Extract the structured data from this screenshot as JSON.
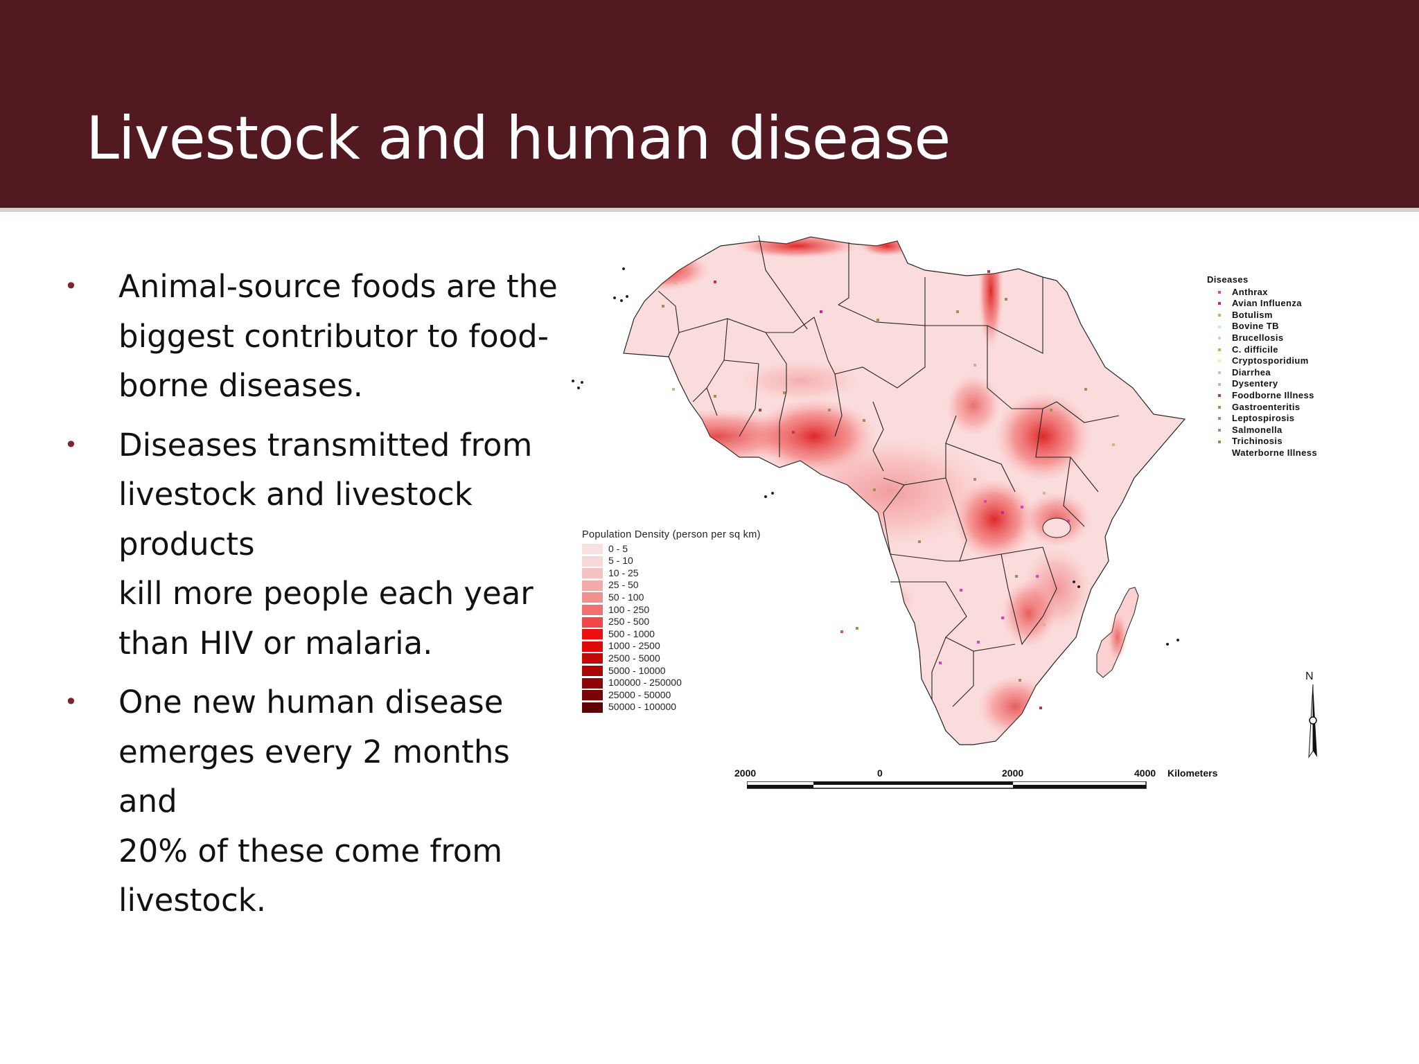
{
  "slide": {
    "title": "Livestock and human disease",
    "bullets": [
      "Animal-source foods are the\nbiggest contributor to food-\nborne diseases.",
      "Diseases transmitted from\nlivestock and livestock\nproducts\nkill more people each year\nthan HIV or malaria.",
      "One new human disease\nemerges every 2 months and\n20% of these come from\nlivestock."
    ],
    "bullet_symbol": "•"
  },
  "map": {
    "region": "Africa",
    "population_legend": {
      "title": "Population Density (person per sq km)",
      "classes": [
        {
          "label": "0 - 5",
          "color": "#f9e1e1"
        },
        {
          "label": "5 - 10",
          "color": "#f7d7d7"
        },
        {
          "label": "10 - 25",
          "color": "#f5c2c2"
        },
        {
          "label": "25 - 50",
          "color": "#f3aaaa"
        },
        {
          "label": "50 - 100",
          "color": "#f28f8f"
        },
        {
          "label": "100 - 250",
          "color": "#f17070"
        },
        {
          "label": "250 - 500",
          "color": "#f04848"
        },
        {
          "label": "500 - 1000",
          "color": "#ee1010"
        },
        {
          "label": "1000 - 2500",
          "color": "#dd0a0a"
        },
        {
          "label": "2500 - 5000",
          "color": "#c50808"
        },
        {
          "label": "5000 - 10000",
          "color": "#ab0606"
        },
        {
          "label": "100000 - 250000",
          "color": "#8f0505"
        },
        {
          "label": "25000 - 50000",
          "color": "#790404"
        },
        {
          "label": "50000 - 100000",
          "color": "#5e0303"
        }
      ]
    },
    "disease_legend": {
      "title": "Diseases",
      "items": [
        {
          "label": "Anthrax",
          "color": "#e040c0"
        },
        {
          "label": "Avian Influenza",
          "color": "#d0208a"
        },
        {
          "label": "Botulism",
          "color": "#c8b070"
        },
        {
          "label": "Bovine TB",
          "color": "#b8e8e8"
        },
        {
          "label": "Brucellosis",
          "color": "#c0d8e8"
        },
        {
          "label": "C. difficile",
          "color": "#d8a850"
        },
        {
          "label": "Cryptosporidium",
          "color": "#f0f0a0"
        },
        {
          "label": "Diarrhea",
          "color": "#d8c0a0"
        },
        {
          "label": "Dysentery",
          "color": "#c8b890"
        },
        {
          "label": "Foodborne Illness",
          "color": "#b04040"
        },
        {
          "label": "Gastroenteritis",
          "color": "#a09050"
        },
        {
          "label": "Leptospirosis",
          "color": "#9090a0"
        },
        {
          "label": "Salmonella",
          "color": "#80a070"
        },
        {
          "label": "Trichinosis",
          "color": "#70a040"
        },
        {
          "label": "Waterborne Illness",
          "color": "#ffffff"
        }
      ]
    },
    "scale_bar": {
      "ticks": [
        "2000",
        "0",
        "2000",
        "4000"
      ],
      "unit": "Kilometers"
    },
    "north_arrow_label": "N"
  }
}
